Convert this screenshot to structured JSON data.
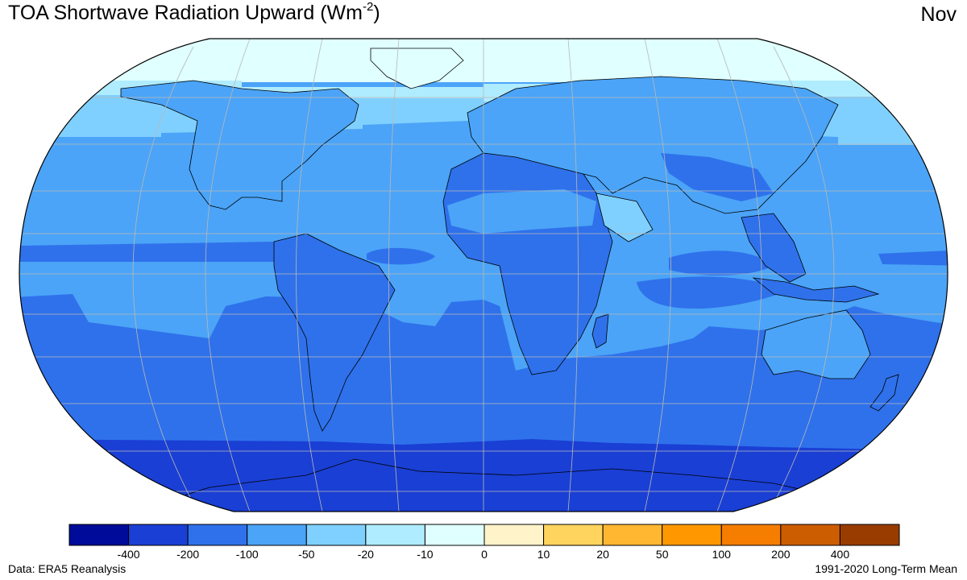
{
  "header": {
    "title_main": "TOA Shortwave Radiation Upward (Wm",
    "title_exp": "-2",
    "title_close": ")",
    "month": "Nov"
  },
  "map": {
    "projection": "robinson",
    "graticule": "on",
    "band_colors": {
      "cap": "#e0ffff",
      "light": "#80d0ff",
      "mid": "#4ba4f7",
      "deep": "#2f71eb",
      "darkest": "#1a3fd4",
      "outline": "#000000",
      "grid": "#b8b8b8"
    }
  },
  "colorbar": {
    "colors": [
      "#000c99",
      "#1a3fd4",
      "#2f71eb",
      "#4ba4f7",
      "#80d0ff",
      "#b0ecff",
      "#e0ffff",
      "#fff3c9",
      "#ffd45e",
      "#ffb732",
      "#ff9800",
      "#f57d00",
      "#cc5d00",
      "#993c00"
    ],
    "labels": [
      "-400",
      "-200",
      "-100",
      "-50",
      "-20",
      "-10",
      "0",
      "10",
      "20",
      "50",
      "100",
      "200",
      "400"
    ]
  },
  "footer": {
    "source": "Data: ERA5 Reanalysis",
    "period": "1991-2020 Long-Term Mean"
  }
}
